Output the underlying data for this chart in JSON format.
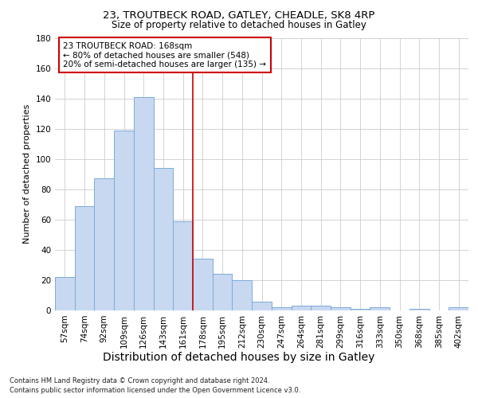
{
  "title_line1": "23, TROUTBECK ROAD, GATLEY, CHEADLE, SK8 4RP",
  "title_line2": "Size of property relative to detached houses in Gatley",
  "xlabel": "Distribution of detached houses by size in Gatley",
  "ylabel": "Number of detached properties",
  "categories": [
    "57sqm",
    "74sqm",
    "92sqm",
    "109sqm",
    "126sqm",
    "143sqm",
    "161sqm",
    "178sqm",
    "195sqm",
    "212sqm",
    "230sqm",
    "247sqm",
    "264sqm",
    "281sqm",
    "299sqm",
    "316sqm",
    "333sqm",
    "350sqm",
    "368sqm",
    "385sqm",
    "402sqm"
  ],
  "values": [
    22,
    69,
    87,
    119,
    141,
    94,
    59,
    34,
    24,
    20,
    6,
    2,
    3,
    3,
    2,
    1,
    2,
    0,
    1,
    0,
    2
  ],
  "bar_color": "#c8d8f0",
  "bar_edge_color": "#7aabda",
  "grid_color": "#cccccc",
  "vline_x": 6.5,
  "vline_color": "#cc0000",
  "annotation_text": "23 TROUTBECK ROAD: 168sqm\n← 80% of detached houses are smaller (548)\n20% of semi-detached houses are larger (135) →",
  "annotation_box_color": "#ffffff",
  "annotation_box_edge_color": "#cc0000",
  "ylim": [
    0,
    180
  ],
  "yticks": [
    0,
    20,
    40,
    60,
    80,
    100,
    120,
    140,
    160,
    180
  ],
  "footnote1": "Contains HM Land Registry data © Crown copyright and database right 2024.",
  "footnote2": "Contains public sector information licensed under the Open Government Licence v3.0.",
  "background_color": "#ffffff",
  "title1_fontsize": 9.5,
  "title2_fontsize": 8.5,
  "xlabel_fontsize": 10,
  "ylabel_fontsize": 8,
  "tick_fontsize": 7.5,
  "annot_fontsize": 7.5,
  "footnote_fontsize": 6.0
}
